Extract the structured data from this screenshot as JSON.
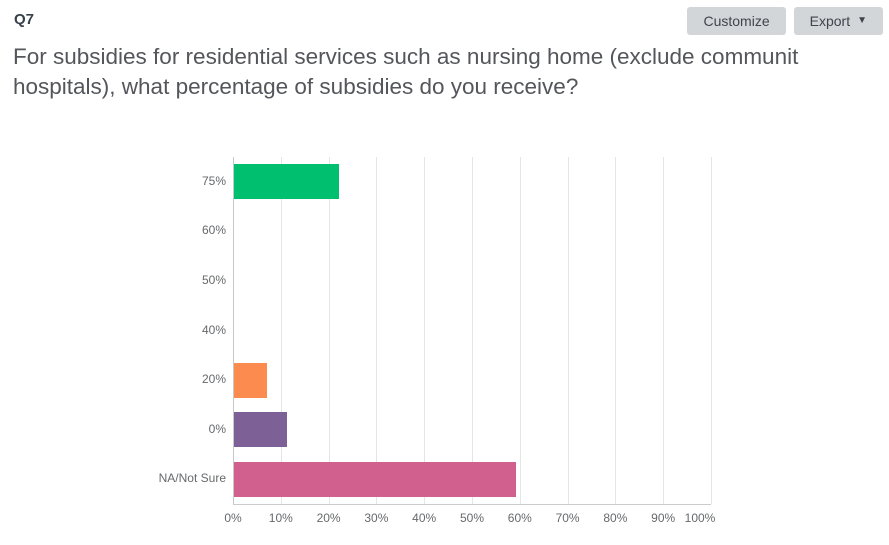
{
  "header": {
    "question_number": "Q7",
    "customize_label": "Customize",
    "export_label": "Export",
    "export_caret_icon": "▼"
  },
  "question": {
    "title": "For subsidies for residential services such as nursing home (exclude communit hospitals), what percentage of subsidies do you receive?"
  },
  "chart_data": {
    "type": "bar",
    "orientation": "horizontal",
    "title": "",
    "xlabel": "",
    "ylabel": "",
    "categories": [
      "75%",
      "60%",
      "50%",
      "40%",
      "20%",
      "0%",
      "NA/Not Sure"
    ],
    "values": [
      22,
      0,
      0,
      0,
      7,
      11,
      59
    ],
    "bar_colors": [
      "#00bf6f",
      "#00bf6f",
      "#00bf6f",
      "#00bf6f",
      "#fb8b4e",
      "#7d6096",
      "#d2608e"
    ],
    "xlim": [
      0,
      100
    ],
    "xtick_labels": [
      "0%",
      "10%",
      "20%",
      "30%",
      "40%",
      "50%",
      "60%",
      "70%",
      "80%",
      "90%",
      "100%"
    ],
    "xtick_values": [
      0,
      10,
      20,
      30,
      40,
      50,
      60,
      70,
      80,
      90,
      100
    ],
    "grid": true,
    "legend": false
  },
  "colors": {
    "green_bar": "#00bf6f",
    "orange_bar": "#fb8b4e",
    "purple_bar": "#7d6096",
    "pink_bar": "#d2608e",
    "button_bg": "#d3d6d9",
    "button_text": "#3e454c",
    "title_text": "#54565b",
    "axis_text": "#66696b",
    "gridline": "#e4e5e6"
  }
}
